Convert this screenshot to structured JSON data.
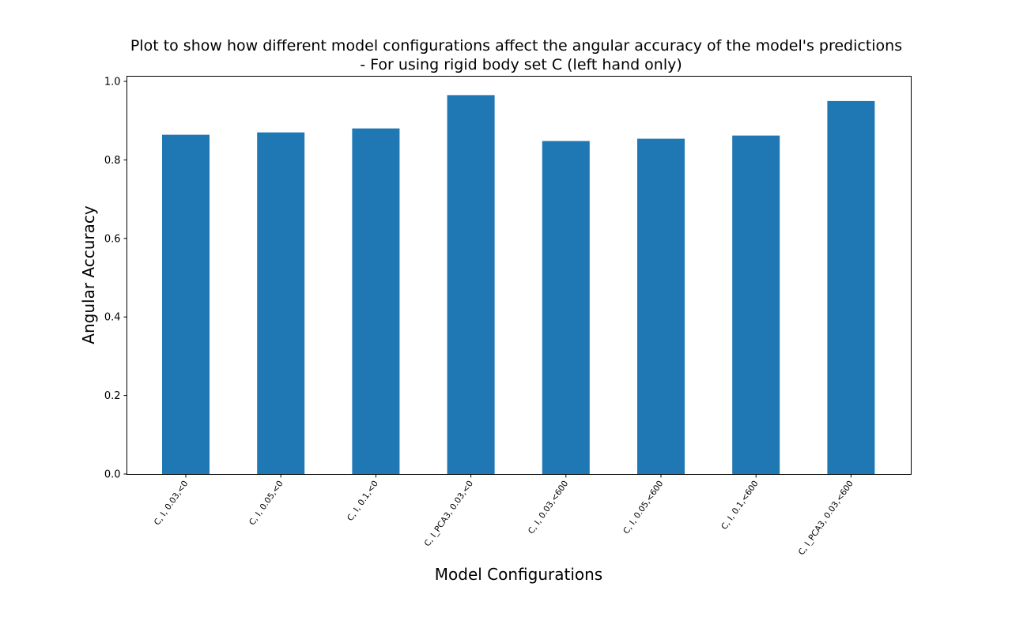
{
  "chart_data": {
    "type": "bar",
    "title": "Plot to show how different model configurations affect the angular accuracy of the model's predictions",
    "subtitle": "- For using rigid body set C (left hand only)",
    "xlabel": "Model Configurations",
    "ylabel": "Angular Accuracy",
    "categories": [
      "C, I, 0.03,<0",
      "C, I, 0.05,<0",
      "C, I, 0.1,<0",
      "C, I_PCA3, 0.03,<0",
      "C, I, 0.03,<600",
      "C, I, 0.05,<600",
      "C, I, 0.1,<600",
      "C, I_PCA3, 0.03,<600"
    ],
    "values": [
      0.864,
      0.87,
      0.88,
      0.965,
      0.848,
      0.854,
      0.862,
      0.95
    ],
    "ylim": [
      0,
      1.0
    ],
    "yticks": [
      "0.0",
      "0.2",
      "0.4",
      "0.6",
      "0.8",
      "1.0"
    ],
    "bar_color": "#1f77b4",
    "grid": false,
    "legend": "none"
  }
}
